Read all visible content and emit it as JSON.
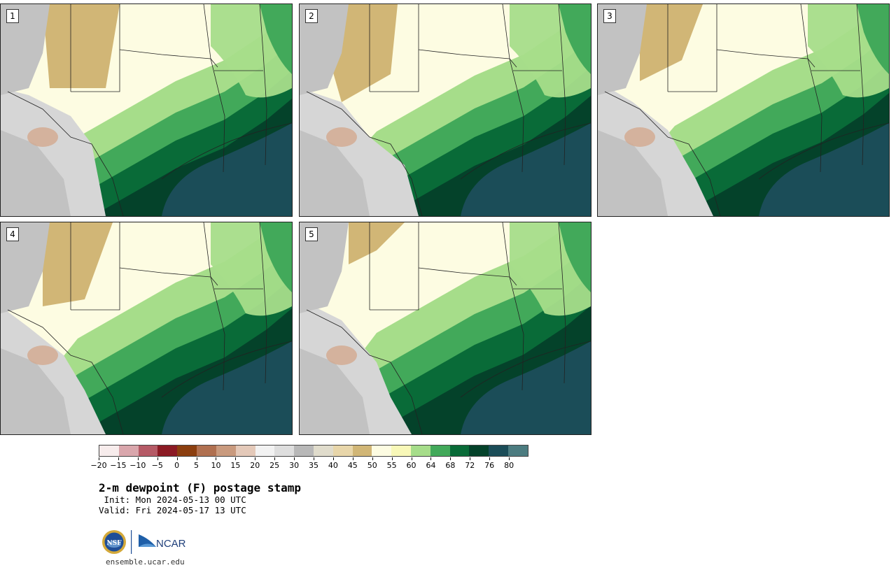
{
  "panels": [
    {
      "label": "1"
    },
    {
      "label": "2"
    },
    {
      "label": "3"
    },
    {
      "label": "4"
    },
    {
      "label": "5"
    }
  ],
  "colorbar": {
    "ticks": [
      "−20",
      "−15",
      "−10",
      "−5",
      "0",
      "5",
      "10",
      "15",
      "20",
      "25",
      "30",
      "35",
      "40",
      "45",
      "50",
      "55",
      "60",
      "64",
      "68",
      "72",
      "76",
      "80"
    ],
    "colors": [
      "#f7ecec",
      "#d9a6ac",
      "#b55a66",
      "#8b1a24",
      "#8b3e0f",
      "#b07050",
      "#c99a7e",
      "#e4c9b9",
      "#f2f2f2",
      "#dedede",
      "#b8b8b8",
      "#e0dccc",
      "#e8d6aa",
      "#d1b676",
      "#fdfce2",
      "#f8f8b8",
      "#a6dd8a",
      "#42a95a",
      "#096b38",
      "#04422a",
      "#1b4d58",
      "#4c7c80"
    ]
  },
  "title": "2-m dewpoint (F) postage stamp",
  "init": " Init: Mon 2024-05-13 00 UTC",
  "valid": "Valid: Fri 2024-05-17 13 UTC",
  "logo": {
    "nsf": "NSF",
    "ncar": "NCAR"
  },
  "url": "ensemble.ucar.edu"
}
